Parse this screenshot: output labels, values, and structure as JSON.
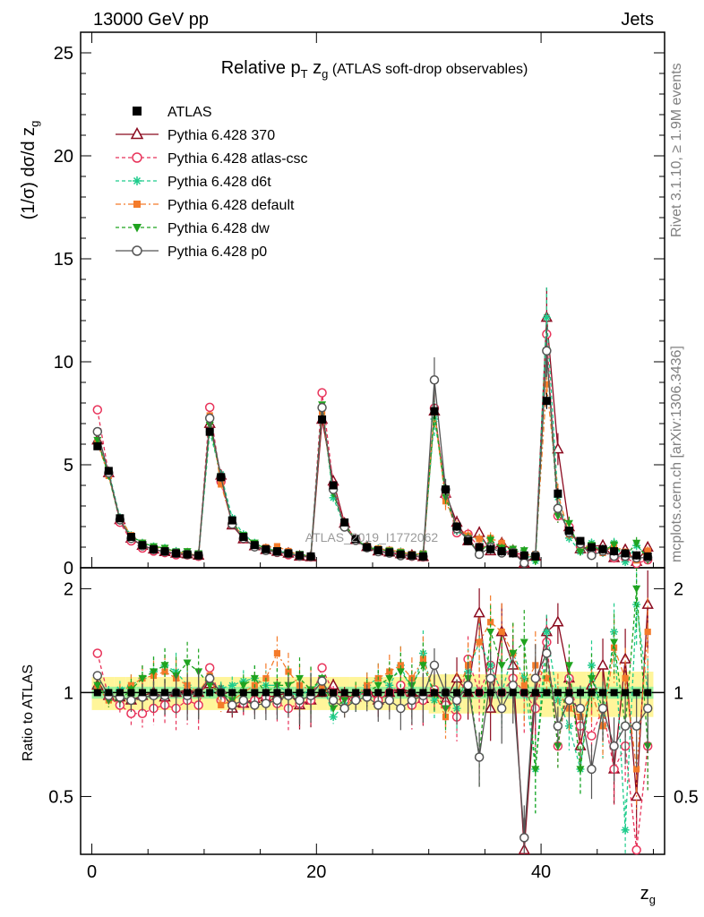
{
  "header": {
    "energy_label": "13000 GeV pp",
    "process_label": "Jets"
  },
  "side_text": {
    "rivet": "Rivet 3.1.10, ≥ 1.9M events",
    "mcplots": "mcplots.cern.ch [arXiv:1306.3436]"
  },
  "watermark": "ATLAS_2019_I1772062",
  "main_plot": {
    "title_prefix": "Relative p",
    "title_sub_T": "T",
    "title_z": "z",
    "title_sub_g": "g",
    "title_suffix": "(ATLAS soft-drop observables)",
    "ylabel": "(1/σ) dσ/d z",
    "ylabel_sub": "g"
  },
  "ratio_plot": {
    "ylabel": "Ratio to ATLAS"
  },
  "xaxis": {
    "label": "z",
    "label_sub": "g"
  },
  "chart_data": {
    "type": "scatter",
    "xlim": [
      -1,
      51
    ],
    "ylim": [
      0,
      26
    ],
    "ratio_ylim": [
      0.34,
      2.3
    ],
    "x_ticks": [
      "0",
      "20",
      "40"
    ],
    "y_ticks": [
      "0",
      "5",
      "10",
      "15",
      "20",
      "25"
    ],
    "ratio_ticks": [
      "0.5",
      "1",
      "2"
    ],
    "grid": false,
    "legend_position": "top-left",
    "bins_x": [
      0.5,
      1.5,
      2.5,
      3.5,
      4.5,
      5.5,
      6.5,
      7.5,
      8.5,
      9.5,
      10.5,
      11.5,
      12.5,
      13.5,
      14.5,
      15.5,
      16.5,
      17.5,
      18.5,
      19.5,
      20.5,
      21.5,
      22.5,
      23.5,
      24.5,
      25.5,
      26.5,
      27.5,
      28.5,
      29.5,
      30.5,
      31.5,
      32.5,
      33.5,
      34.5,
      35.5,
      36.5,
      37.5,
      38.5,
      39.5,
      40.5,
      41.5,
      42.5,
      43.5,
      44.5,
      45.5,
      46.5,
      47.5,
      48.5,
      49.5
    ],
    "data_values": [
      5.9,
      4.7,
      2.4,
      1.5,
      1.1,
      0.9,
      0.8,
      0.7,
      0.65,
      0.6,
      6.6,
      4.4,
      2.3,
      1.5,
      1.1,
      0.9,
      0.8,
      0.7,
      0.6,
      0.55,
      7.2,
      4.0,
      2.2,
      1.4,
      1.0,
      0.85,
      0.75,
      0.65,
      0.6,
      0.55,
      7.6,
      3.8,
      2.0,
      1.3,
      1.0,
      0.9,
      0.8,
      0.7,
      0.6,
      0.55,
      8.1,
      3.6,
      1.8,
      1.3,
      1.0,
      0.9,
      0.8,
      0.7,
      0.6,
      0.55
    ],
    "series": [
      {
        "name": "ATLAS",
        "color": "#000000",
        "marker": "square",
        "values": [
          5.9,
          4.7,
          2.4,
          1.5,
          1.1,
          0.9,
          0.8,
          0.7,
          0.65,
          0.6,
          6.6,
          4.4,
          2.3,
          1.5,
          1.1,
          0.9,
          0.8,
          0.7,
          0.6,
          0.55,
          7.2,
          4.0,
          2.2,
          1.4,
          1.0,
          0.85,
          0.75,
          0.65,
          0.6,
          0.55,
          7.6,
          3.8,
          2.0,
          1.3,
          1.0,
          0.9,
          0.8,
          0.7,
          0.6,
          0.55,
          8.1,
          3.6,
          1.8,
          1.3,
          1.0,
          0.9,
          0.8,
          0.7,
          0.6,
          0.55
        ]
      },
      {
        "name": "Pythia 6.428 370",
        "color": "#8b0a1f",
        "marker": "triangle",
        "ratio": [
          1.05,
          0.98,
          0.97,
          0.95,
          0.98,
          1.0,
          0.97,
          1.0,
          1.02,
          1.0,
          1.06,
          1.02,
          0.9,
          0.93,
          0.96,
          0.97,
          0.98,
          1.0,
          0.92,
          0.95,
          1.0,
          1.05,
          0.98,
          0.97,
          1.02,
          0.95,
          1.0,
          1.03,
          1.0,
          0.96,
          1.0,
          0.95,
          1.1,
          1.0,
          1.7,
          0.9,
          1.5,
          1.2,
          0.35,
          1.0,
          1.5,
          1.6,
          1.1,
          0.7,
          1.05,
          1.2,
          0.6,
          1.25,
          0.5,
          1.8
        ]
      },
      {
        "name": "Pythia 6.428 atlas-csc",
        "color": "#e8335a",
        "marker": "circle-open",
        "ratio": [
          1.3,
          0.97,
          0.92,
          0.87,
          0.87,
          0.9,
          0.92,
          0.9,
          0.95,
          0.92,
          1.18,
          0.95,
          0.92,
          0.93,
          0.95,
          0.97,
          0.93,
          0.9,
          0.93,
          0.95,
          1.18,
          1.0,
          0.95,
          0.98,
          1.0,
          0.95,
          1.0,
          1.05,
          0.92,
          0.95,
          1.02,
          0.92,
          0.85,
          1.25,
          1.0,
          1.2,
          1.0,
          1.1,
          1.0,
          0.9,
          1.4,
          0.7,
          1.1,
          0.8,
          0.75,
          0.9,
          0.6,
          0.7,
          0.35,
          0.7
        ]
      },
      {
        "name": "Pythia 6.428 d6t",
        "color": "#1fcc8c",
        "marker": "star",
        "ratio": [
          1.03,
          1.0,
          1.02,
          1.05,
          1.1,
          1.15,
          1.2,
          1.15,
          1.05,
          1.0,
          1.0,
          1.03,
          1.05,
          1.08,
          1.1,
          1.05,
          1.05,
          1.0,
          0.98,
          1.02,
          1.08,
          0.85,
          0.92,
          0.95,
          1.05,
          1.1,
          1.05,
          1.2,
          1.0,
          1.3,
          0.95,
          1.0,
          0.9,
          1.15,
          1.4,
          1.2,
          1.0,
          1.3,
          1.1,
          0.6,
          1.5,
          0.95,
          0.8,
          0.6,
          1.2,
          0.8,
          1.5,
          0.4,
          1.8,
          1.0
        ]
      },
      {
        "name": "Pythia 6.428 default",
        "color": "#f47b2a",
        "marker": "square-small",
        "ratio": [
          1.03,
          0.95,
          1.0,
          1.05,
          1.1,
          1.12,
          1.15,
          1.1,
          1.05,
          1.0,
          1.12,
          0.92,
          0.95,
          1.0,
          1.05,
          1.1,
          1.3,
          1.15,
          1.05,
          1.02,
          1.05,
          0.95,
          0.9,
          0.98,
          1.05,
          1.1,
          1.15,
          1.2,
          1.1,
          1.25,
          1.0,
          0.85,
          1.0,
          1.2,
          1.4,
          1.6,
          1.5,
          1.3,
          1.05,
          1.2,
          1.1,
          1.0,
          0.9,
          0.85,
          1.0,
          0.8,
          1.35,
          1.1,
          0.6,
          1.5
        ]
      },
      {
        "name": "Pythia 6.428 dw",
        "color": "#1fa31f",
        "marker": "triangle-down",
        "ratio": [
          1.05,
          0.95,
          0.95,
          1.02,
          1.1,
          1.15,
          1.2,
          1.12,
          1.22,
          1.15,
          1.05,
          1.0,
          0.95,
          1.05,
          1.1,
          1.0,
          1.05,
          1.05,
          1.1,
          1.02,
          1.1,
          0.9,
          0.95,
          1.0,
          1.0,
          1.05,
          1.1,
          1.15,
          1.05,
          1.2,
          1.0,
          0.9,
          0.95,
          1.1,
          0.65,
          1.5,
          1.2,
          1.3,
          1.4,
          0.6,
          1.3,
          0.7,
          1.2,
          0.6,
          1.1,
          0.9,
          1.4,
          0.8,
          2.0,
          0.7
        ]
      },
      {
        "name": "Pythia 6.428 p0",
        "color": "#555555",
        "marker": "circle-open",
        "ratio": [
          1.12,
          0.98,
          0.97,
          0.95,
          0.97,
          0.98,
          0.98,
          1.0,
          0.98,
          1.0,
          1.1,
          1.0,
          0.92,
          0.95,
          0.92,
          0.93,
          0.95,
          0.98,
          0.95,
          0.98,
          1.08,
          0.95,
          0.9,
          0.95,
          0.97,
          0.92,
          0.95,
          0.9,
          0.95,
          0.98,
          1.2,
          1.0,
          0.95,
          1.05,
          0.65,
          1.1,
          0.9,
          1.05,
          0.38,
          1.1,
          1.3,
          0.8,
          0.95,
          0.9,
          0.6,
          0.9,
          0.7,
          0.8,
          0.8,
          0.9
        ]
      }
    ]
  }
}
